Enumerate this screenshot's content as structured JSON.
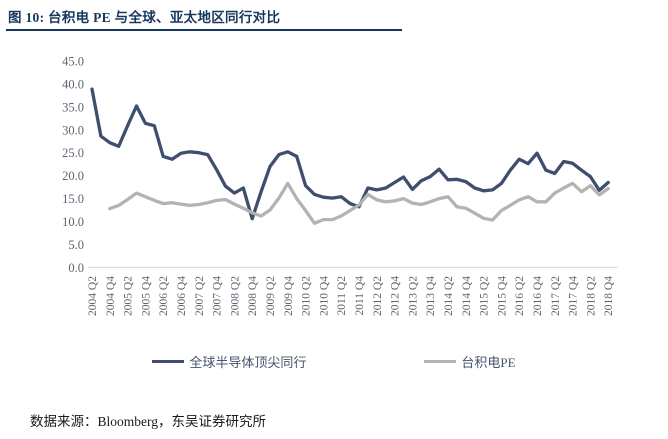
{
  "figure": {
    "title": "图 10: 台积电 PE 与全球、亚太地区同行对比",
    "source_note": "数据来源：Bloomberg，东吴证券研究所"
  },
  "colors": {
    "title_navy": "#17375d",
    "series_navy": "#3f4e6e",
    "series_gray": "#b3b3b3",
    "axis_text": "#5b6670",
    "baseline": "#d9d9d9"
  },
  "chart_data": {
    "type": "line",
    "title": "",
    "xlabel": "",
    "ylabel": "",
    "ylim": [
      0,
      45
    ],
    "ytick_step": 5,
    "y_tick_labels": [
      "0.0",
      "5.0",
      "10.0",
      "15.0",
      "20.0",
      "25.0",
      "30.0",
      "35.0",
      "40.0",
      "45.0"
    ],
    "x_tick_labels": [
      "2004 Q2",
      "2004 Q4",
      "2005 Q2",
      "2005 Q4",
      "2006 Q2",
      "2006 Q4",
      "2007 Q2",
      "2007 Q4",
      "2008 Q2",
      "2008 Q4",
      "2009 Q2",
      "2009 Q4",
      "2010 Q2",
      "2010 Q4",
      "2011 Q2",
      "2011 Q4",
      "2012 Q2",
      "2012 Q4",
      "2013 Q2",
      "2013 Q4",
      "2014 Q2",
      "2014 Q4",
      "2015 Q2",
      "2015 Q4",
      "2016 Q2",
      "2016 Q4",
      "2017 Q2",
      "2017 Q4",
      "2018 Q2",
      "2018 Q4"
    ],
    "points_per_label": 2,
    "grid": false,
    "legend_position": "bottom",
    "series": [
      {
        "name": "全球半导体顶尖同行",
        "color": "#3f4e6e",
        "values": [
          38.9,
          28.6,
          27.2,
          26.4,
          30.9,
          35.2,
          31.4,
          30.9,
          24.2,
          23.6,
          24.9,
          25.2,
          25.0,
          24.6,
          21.3,
          17.7,
          16.2,
          17.3,
          10.6,
          16.5,
          22.0,
          24.6,
          25.2,
          24.2,
          17.8,
          15.9,
          15.3,
          15.1,
          15.4,
          13.9,
          13.2,
          17.3,
          16.9,
          17.3,
          18.5,
          19.7,
          17.0,
          18.9,
          19.8,
          21.4,
          19.1,
          19.2,
          18.7,
          17.3,
          16.7,
          16.9,
          18.3,
          21.2,
          23.6,
          22.6,
          24.9,
          21.2,
          20.5,
          23.1,
          22.7,
          21.2,
          19.8,
          16.8,
          18.5
        ]
      },
      {
        "name": "台积电PE",
        "color": "#b3b3b3",
        "values": [
          null,
          null,
          12.8,
          13.5,
          14.8,
          16.2,
          15.4,
          14.6,
          13.9,
          14.1,
          13.8,
          13.5,
          13.7,
          14.1,
          14.6,
          14.8,
          13.8,
          12.9,
          11.9,
          11.2,
          12.5,
          15.1,
          18.3,
          15.0,
          12.4,
          9.6,
          10.4,
          10.4,
          11.2,
          12.4,
          13.6,
          15.9,
          14.7,
          14.3,
          14.5,
          15.0,
          14.0,
          13.7,
          14.3,
          15.0,
          15.4,
          13.2,
          12.9,
          11.8,
          10.7,
          10.3,
          12.4,
          13.5,
          14.7,
          15.4,
          14.3,
          14.3,
          16.2,
          17.3,
          18.3,
          16.5,
          17.8,
          15.8,
          17.2
        ]
      }
    ]
  }
}
